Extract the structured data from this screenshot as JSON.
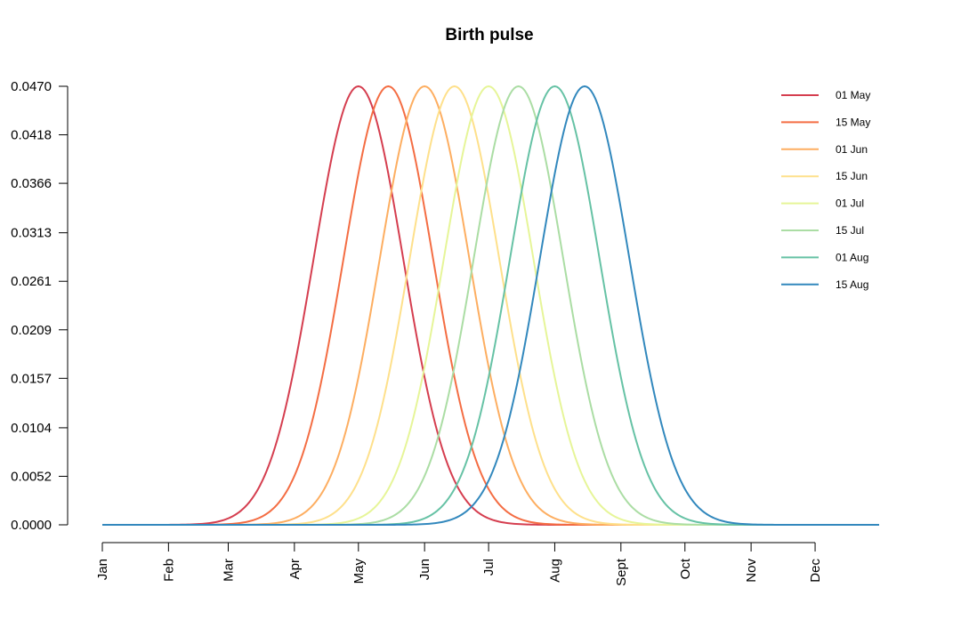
{
  "chart_data": {
    "type": "line",
    "title": "Birth pulse",
    "xlabel": "",
    "ylabel": "",
    "xlim": [
      0,
      364
    ],
    "ylim": [
      0,
      0.047
    ],
    "x_ticks": [
      {
        "label": "Jan",
        "day": 0
      },
      {
        "label": "Feb",
        "day": 31
      },
      {
        "label": "Mar",
        "day": 59
      },
      {
        "label": "Apr",
        "day": 90
      },
      {
        "label": "May",
        "day": 120
      },
      {
        "label": "Jun",
        "day": 151
      },
      {
        "label": "Jul",
        "day": 181
      },
      {
        "label": "Aug",
        "day": 212
      },
      {
        "label": "Sept",
        "day": 243
      },
      {
        "label": "Oct",
        "day": 273
      },
      {
        "label": "Nov",
        "day": 304
      },
      {
        "label": "Dec",
        "day": 334
      }
    ],
    "y_ticks": [
      "0.0000",
      "0.0052",
      "0.0104",
      "0.0157",
      "0.0209",
      "0.0261",
      "0.0313",
      "0.0366",
      "0.0418",
      "0.0470"
    ],
    "grid": false,
    "legend_position": "top-right",
    "curve": "gaussian pulse, peak 0.047, sd about 21 days",
    "series": [
      {
        "name": "01 May",
        "peak_day": 120,
        "peak": 0.047,
        "sd_days": 21,
        "color": "#d53e4f"
      },
      {
        "name": "15 May",
        "peak_day": 134,
        "peak": 0.047,
        "sd_days": 21,
        "color": "#f46d43"
      },
      {
        "name": "01 Jun",
        "peak_day": 151,
        "peak": 0.047,
        "sd_days": 21,
        "color": "#fdae61"
      },
      {
        "name": "15 Jun",
        "peak_day": 165,
        "peak": 0.047,
        "sd_days": 21,
        "color": "#fee08b"
      },
      {
        "name": "01 Jul",
        "peak_day": 181,
        "peak": 0.047,
        "sd_days": 21,
        "color": "#e6f598"
      },
      {
        "name": "15 Jul",
        "peak_day": 195,
        "peak": 0.047,
        "sd_days": 21,
        "color": "#abdda4"
      },
      {
        "name": "01 Aug",
        "peak_day": 212,
        "peak": 0.047,
        "sd_days": 21,
        "color": "#66c2a5"
      },
      {
        "name": "15 Aug",
        "peak_day": 226,
        "peak": 0.047,
        "sd_days": 21,
        "color": "#3288bd"
      }
    ]
  }
}
